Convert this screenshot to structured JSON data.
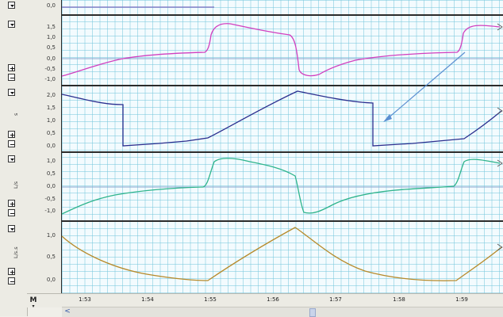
{
  "app": {
    "kind": "waveform-monitor"
  },
  "panes": [
    {
      "id": "top-partial",
      "top_ticks": [
        "0,0"
      ],
      "trace_color": "#7a6cc0"
    },
    {
      "id": "flow",
      "unit": "",
      "ticks": [
        "1,5",
        "1,0",
        "0,5",
        "0,0",
        "-0,5",
        "-1,0"
      ],
      "trace_color": "#d13fbf"
    },
    {
      "id": "volume",
      "unit": "s",
      "ticks": [
        "2,0",
        "1,5",
        "1,0",
        "0,5",
        "0,0"
      ],
      "trace_color": "#2b2f8f"
    },
    {
      "id": "flow-l",
      "unit": "L/s",
      "ticks": [
        "1,0",
        "0,5",
        "0,0",
        "-0,5",
        "-1,0"
      ],
      "trace_color": "#2fb48c"
    },
    {
      "id": "ls-s",
      "unit": "L/s.s",
      "ticks": [
        "1,0",
        "0,5",
        "0,0"
      ],
      "trace_color": "#b78a2a"
    }
  ],
  "time_axis": {
    "labels": [
      "1:53",
      "1:54",
      "1:55",
      "1:56",
      "1:57",
      "1:58",
      "1:59"
    ]
  },
  "controls": {
    "mode_button": "M",
    "scroll_left": "<"
  },
  "colors": {
    "grid": "#8fd2e2",
    "background": "#f3fbfe",
    "zero_line": "#8aa6cf",
    "annotation_arrow": "#5b8fd1"
  },
  "icons": {
    "dropdown": "triangle-down-icon",
    "zoom_in": "plus-box-icon",
    "zoom_out": "minus-box-icon",
    "scroll_left": "arrow-left-icon"
  }
}
